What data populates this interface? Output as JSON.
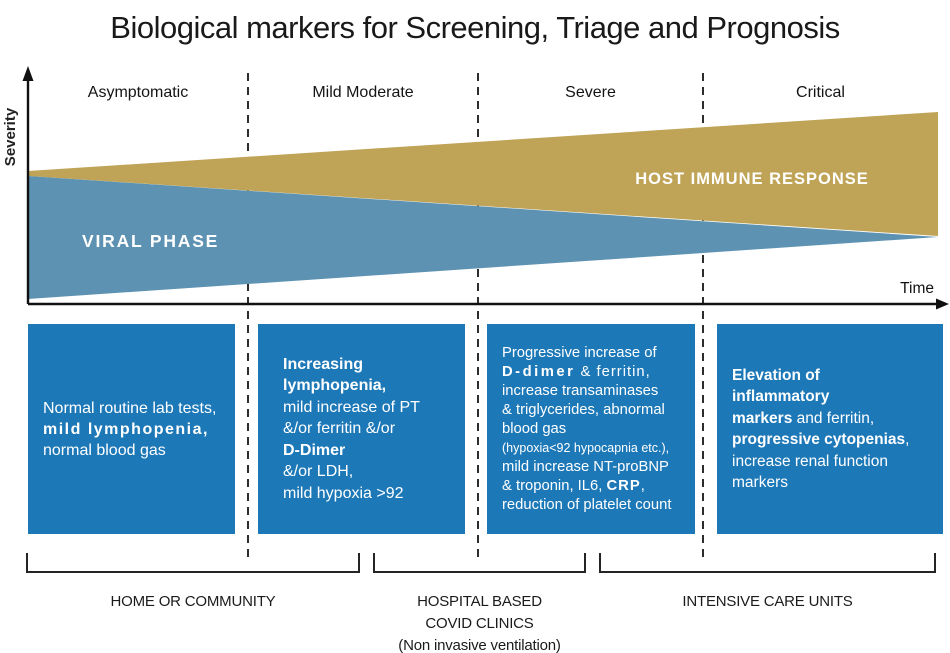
{
  "title": "Biological markers for Screening, Triage and Prognosis",
  "axes": {
    "y": "Severity",
    "x": "Time"
  },
  "phases": [
    {
      "label": "Asymptomatic"
    },
    {
      "label": "Mild Moderate"
    },
    {
      "label": "Severe"
    },
    {
      "label": "Critical"
    }
  ],
  "wedges": {
    "viral": {
      "label": "VIRAL PHASE",
      "color": "#5d92b2"
    },
    "host": {
      "label": "HOST IMMUNE RESPONSE",
      "color": "#bfa356"
    }
  },
  "boxes": [
    {
      "name": "asymptomatic-markers",
      "lines": [
        [
          {
            "t": "Normal routine lab tests,",
            "b": 0
          }
        ],
        [
          {
            "t": "mild lymphopenia,",
            "b": 1,
            "ls": 1.5
          }
        ],
        [
          {
            "t": "normal blood gas",
            "b": 0
          }
        ]
      ]
    },
    {
      "name": "mild-moderate-markers",
      "lines": [
        [
          {
            "t": "Increasing",
            "b": 1
          }
        ],
        [
          {
            "t": "lymphopenia,",
            "b": 1
          }
        ],
        [
          {
            "t": "mild increase of PT",
            "b": 0
          }
        ],
        [
          {
            "t": "&/or ferritin &/or",
            "b": 0
          }
        ],
        [
          {
            "t": "D-Dimer",
            "b": 1
          }
        ],
        [
          {
            "t": "&/or LDH,",
            "b": 0
          }
        ],
        [
          {
            "t": "mild hypoxia >92",
            "b": 0
          }
        ]
      ]
    },
    {
      "name": "severe-markers",
      "lines": [
        [
          {
            "t": "Progressive increase of",
            "b": 0
          }
        ],
        [
          {
            "t": "D-dimer",
            "b": 1,
            "ls": 2.5
          },
          {
            "t": " & ferritin,",
            "b": 0,
            "ls": 1
          }
        ],
        [
          {
            "t": "increase transaminases",
            "b": 0
          }
        ],
        [
          {
            "t": "& triglycerides, abnormal",
            "b": 0
          }
        ],
        [
          {
            "t": "blood gas",
            "b": 0
          }
        ],
        [
          {
            "t": "(hypoxia<92 hypocapnia etc.),",
            "b": 0,
            "sz": 12.5
          }
        ],
        [
          {
            "t": "mild increase NT-proBNP",
            "b": 0
          }
        ],
        [
          {
            "t": "& troponin, IL6, ",
            "b": 0
          },
          {
            "t": "CRP",
            "b": 1,
            "ls": 1
          },
          {
            "t": ",",
            "b": 0
          }
        ],
        [
          {
            "t": "reduction of platelet count",
            "b": 0
          }
        ]
      ]
    },
    {
      "name": "critical-markers",
      "lines": [
        [
          {
            "t": "Elevation of",
            "b": 1
          }
        ],
        [
          {
            "t": "inflammatory",
            "b": 1
          }
        ],
        [
          {
            "t": "markers",
            "b": 1
          },
          {
            "t": " and ferritin,",
            "b": 0
          }
        ],
        [
          {
            "t": "progressive cytopenias",
            "b": 1
          },
          {
            "t": ",",
            "b": 0
          }
        ],
        [
          {
            "t": "increase renal function",
            "b": 0
          }
        ],
        [
          {
            "t": "markers",
            "b": 0
          }
        ]
      ]
    }
  ],
  "care_settings": [
    {
      "name": "home-or-community",
      "lines": [
        "HOME OR COMMUNITY"
      ]
    },
    {
      "name": "hospital-based-covid-clinics",
      "lines": [
        "HOSPITAL BASED",
        "COVID CLINICS",
        "(Non invasive ventilation)"
      ]
    },
    {
      "name": "intensive-care-units",
      "lines": [
        "INTENSIVE CARE UNITS"
      ]
    }
  ],
  "colors": {
    "box_blue": "#1d78b8",
    "viral_blue": "#5d92b2",
    "immune_gold": "#bfa356",
    "ink": "#1b1b1b"
  }
}
